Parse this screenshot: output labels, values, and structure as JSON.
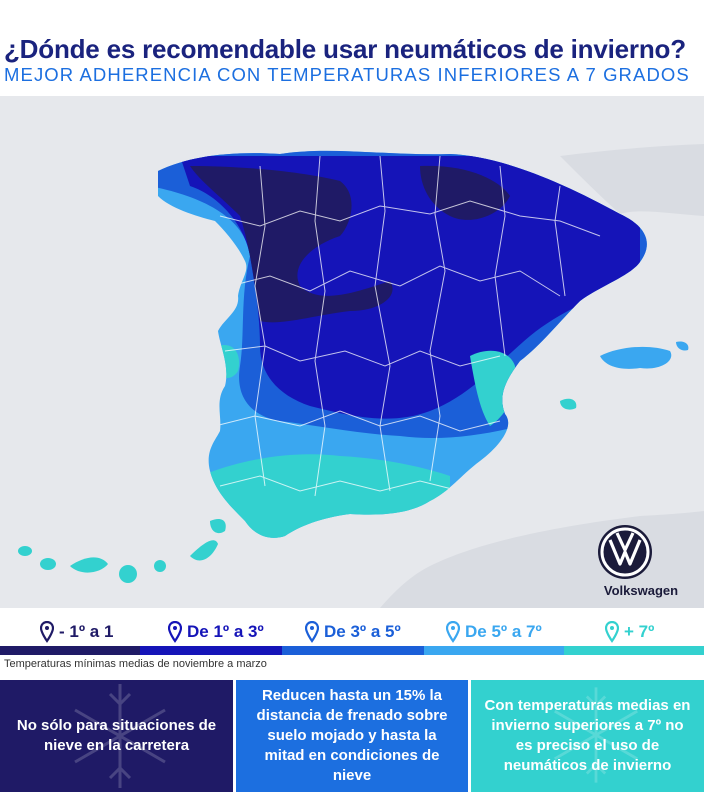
{
  "header": {
    "title": "¿Dónde es recomendable usar neumáticos de invierno?",
    "subtitle": "MEJOR ADHERENCIA CON TEMPERATURAS INFERIORES A 7 GRADOS"
  },
  "brand": {
    "name": "Volkswagen",
    "logo_icon": "volkswagen-logo-icon"
  },
  "legend": {
    "items": [
      {
        "label": "- 1º a 1",
        "color": "#1f1a66",
        "icon": "map-pin-icon"
      },
      {
        "label": "De 1º a 3º",
        "color": "#1514b8",
        "icon": "map-pin-icon"
      },
      {
        "label": "De 3º a 5º",
        "color": "#1b5fd8",
        "icon": "map-pin-icon"
      },
      {
        "label": "De 5º a 7º",
        "color": "#3aa7f0",
        "icon": "map-pin-icon"
      },
      {
        "label": "+ 7º",
        "color": "#33d1cf",
        "icon": "map-pin-icon"
      }
    ],
    "footnote": "Temperaturas mínimas medias de noviembre a marzo"
  },
  "info_boxes": [
    {
      "text": "No sólo para situaciones de nieve en la carretera",
      "color": "#1f1a66",
      "icon": "snowflake-icon"
    },
    {
      "text": "Reducen hasta un 15% la distancia de frenado sobre suelo mojado y hasta la mitad en condiciones de nieve",
      "color": "#1c6fe0",
      "icon": ""
    },
    {
      "text": "Con temperaturas medias en invierno superiores a 7º no es preciso el uso de neumáticos de invierno",
      "color": "#33d1cf",
      "icon": "snowflake-icon"
    }
  ]
}
